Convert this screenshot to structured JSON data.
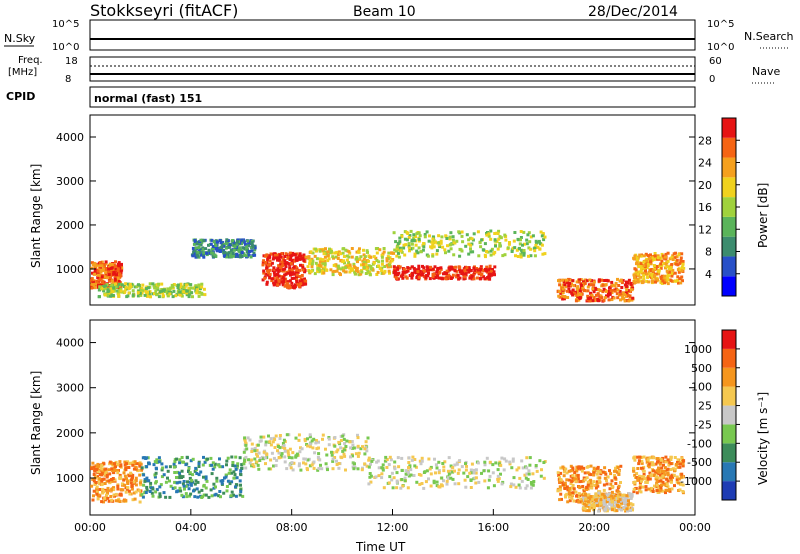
{
  "header": {
    "station": "Stokkseyri (fitACF)",
    "beam": "Beam 10",
    "date": "28/Dec/2014"
  },
  "top_panels": {
    "nsky_label": "N.Sky",
    "nsky_ticks": [
      "10^5",
      "10^0"
    ],
    "nsearch_label": "N.Search",
    "nsearch_ticks": [
      "10^5",
      "10^0"
    ],
    "freq_label_1": "Freq.",
    "freq_label_2": "[MHz]",
    "freq_ticks": [
      "18",
      "8"
    ],
    "nave_label": "Nave",
    "nave_ticks": [
      "60",
      "0"
    ],
    "cpid_label": "CPID",
    "cpid_value": "normal (fast) 151"
  },
  "chart_data": [
    {
      "type": "heatmap",
      "name": "power",
      "ylabel": "Slant Range [km]",
      "ylim": [
        180,
        4500
      ],
      "yticks": [
        "1000",
        "2000",
        "3000",
        "4000"
      ],
      "colorbar_label": "Power [dB]",
      "colorbar_ticks": [
        "28",
        "24",
        "20",
        "16",
        "12",
        "8",
        "4"
      ],
      "colorbar_colors": [
        "#0000ff",
        "#2850c8",
        "#3c8c6e",
        "#5ab45a",
        "#a0d23c",
        "#f0d21e",
        "#f5a01e",
        "#f56414",
        "#e61414"
      ],
      "echo_regions": [
        {
          "t": [
            0.0,
            1.2
          ],
          "r": [
            600,
            1200
          ],
          "level": 7
        },
        {
          "t": [
            0.3,
            4.5
          ],
          "r": [
            400,
            700
          ],
          "level": 4
        },
        {
          "t": [
            4.0,
            6.5
          ],
          "r": [
            1300,
            1700
          ],
          "level": 2
        },
        {
          "t": [
            6.8,
            8.5
          ],
          "r": [
            600,
            1400
          ],
          "level": 8
        },
        {
          "t": [
            8.5,
            12.0
          ],
          "r": [
            900,
            1500
          ],
          "level": 5
        },
        {
          "t": [
            12.0,
            16.0
          ],
          "r": [
            800,
            1100
          ],
          "level": 8
        },
        {
          "t": [
            12.0,
            18.0
          ],
          "r": [
            1300,
            1900
          ],
          "level": 4
        },
        {
          "t": [
            18.5,
            21.5
          ],
          "r": [
            300,
            800
          ],
          "level": 7
        },
        {
          "t": [
            21.5,
            23.5
          ],
          "r": [
            700,
            1400
          ],
          "level": 6
        }
      ]
    },
    {
      "type": "heatmap",
      "name": "velocity",
      "ylabel": "Slant Range [km]",
      "ylim": [
        180,
        4500
      ],
      "yticks": [
        "1000",
        "2000",
        "3000",
        "4000"
      ],
      "xlabel": "Time UT",
      "xticks": [
        "00:00",
        "04:00",
        "08:00",
        "12:00",
        "16:00",
        "20:00",
        "00:00"
      ],
      "colorbar_label": "Velocity [m s⁻¹]",
      "colorbar_ticks": [
        "1000",
        "500",
        "100",
        "25",
        "-25",
        "-100",
        "-500",
        "-1000"
      ],
      "colorbar_colors": [
        "#1e3cb4",
        "#2878b4",
        "#3c8c5a",
        "#78c850",
        "#c8c8c8",
        "#f5c850",
        "#f5961e",
        "#f56414",
        "#e61414"
      ],
      "echo_regions": [
        {
          "t": [
            0.0,
            2.0
          ],
          "r": [
            500,
            1400
          ],
          "level": 6
        },
        {
          "t": [
            2.0,
            6.0
          ],
          "r": [
            600,
            1500
          ],
          "level": 2
        },
        {
          "t": [
            6.0,
            11.0
          ],
          "r": [
            1200,
            2000
          ],
          "level": 4
        },
        {
          "t": [
            11.0,
            18.0
          ],
          "r": [
            800,
            1500
          ],
          "level": 4
        },
        {
          "t": [
            18.5,
            21.0
          ],
          "r": [
            500,
            1300
          ],
          "level": 6
        },
        {
          "t": [
            19.5,
            21.5
          ],
          "r": [
            300,
            700
          ],
          "level": 5
        },
        {
          "t": [
            21.5,
            23.5
          ],
          "r": [
            700,
            1500
          ],
          "level": 6
        }
      ]
    }
  ]
}
